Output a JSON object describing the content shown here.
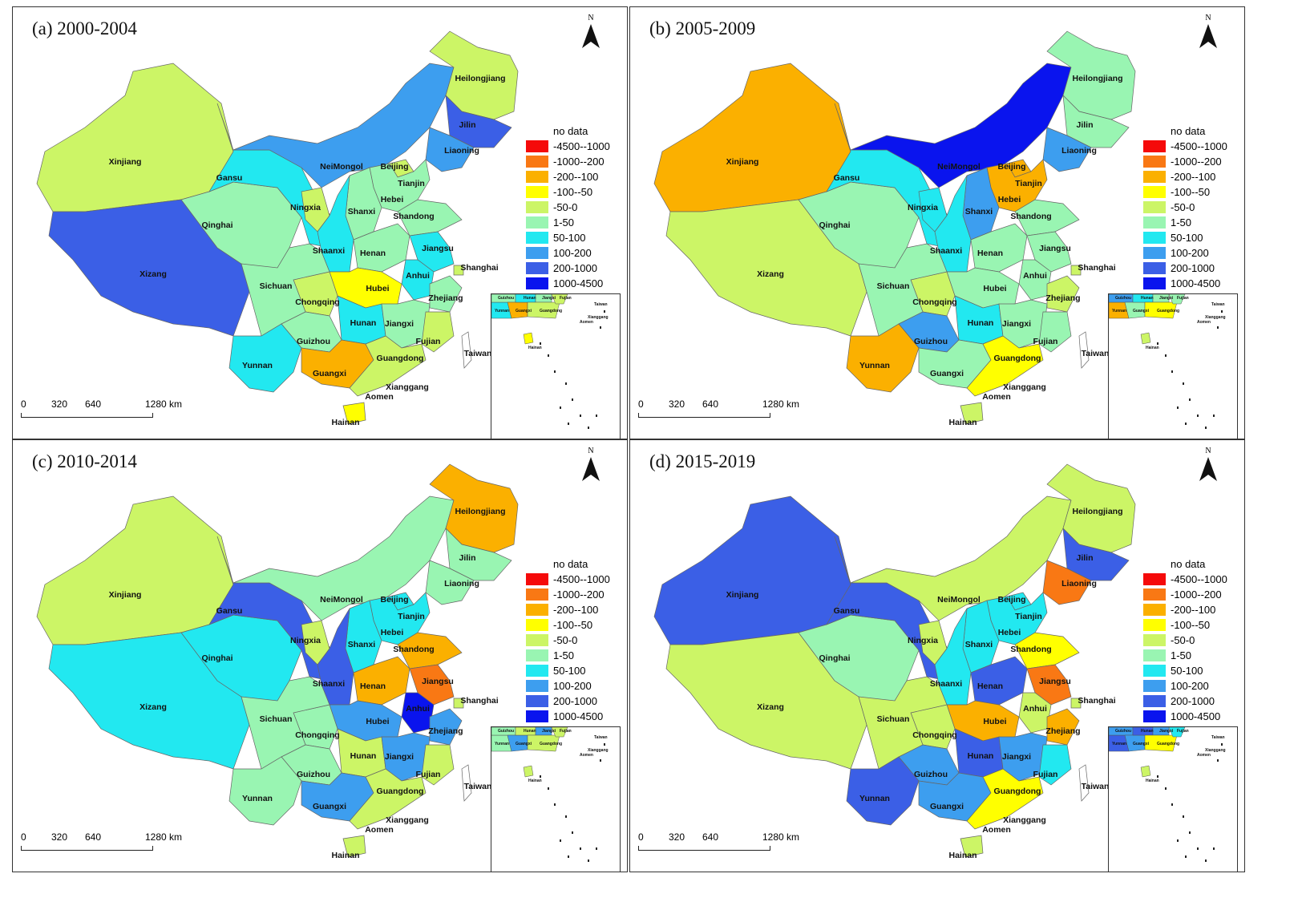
{
  "panels": [
    {
      "title": "(a) 2000-2004",
      "colors": {
        "Xinjiang": "#ccf566",
        "Xizang": "#3b5fe6",
        "Qinghai": "#99f5b2",
        "Gansu": "#22e8f0",
        "NeiMongol": "#3d9eef",
        "Heilongjiang": "#ccf566",
        "Jilin": "#3b5fe6",
        "Liaoning": "#3d9eef",
        "Beijing": "#ccf566",
        "Tianjin": "#ccf566",
        "Hebei": "#99f5b2",
        "Shanxi": "#99f5b2",
        "Shandong": "#99f5b2",
        "Ningxia": "#ccf566",
        "Shaanxi": "#22e8f0",
        "Henan": "#99f5b2",
        "Jiangsu": "#22e8f0",
        "Shanghai": "#ccf566",
        "Anhui": "#22e8f0",
        "Hubei": "#ffff00",
        "Chongqing": "#ccf566",
        "Sichuan": "#99f5b2",
        "Hunan": "#22e8f0",
        "Jiangxi": "#99f5b2",
        "Zhejiang": "#99f5b2",
        "Fujian": "#ccf566",
        "Guizhou": "#99f5b2",
        "Yunnan": "#22e8f0",
        "Guangxi": "#fbb000",
        "Guangdong": "#ccf566",
        "Hainan": "#ffff00",
        "Taiwan": "#ffffff"
      }
    },
    {
      "title": "(b) 2005-2009",
      "colors": {
        "Xinjiang": "#fbb000",
        "Xizang": "#ccf566",
        "Qinghai": "#99f5b2",
        "Gansu": "#22e8f0",
        "NeiMongol": "#0a14ee",
        "Heilongjiang": "#99f5b2",
        "Jilin": "#99f5b2",
        "Liaoning": "#3d9eef",
        "Beijing": "#fbb000",
        "Tianjin": "#ffff00",
        "Hebei": "#fbb000",
        "Shanxi": "#3d9eef",
        "Shandong": "#99f5b2",
        "Ningxia": "#22e8f0",
        "Shaanxi": "#22e8f0",
        "Henan": "#99f5b2",
        "Jiangsu": "#99f5b2",
        "Shanghai": "#ccf566",
        "Anhui": "#99f5b2",
        "Hubei": "#99f5b2",
        "Chongqing": "#ccf566",
        "Sichuan": "#99f5b2",
        "Hunan": "#22e8f0",
        "Jiangxi": "#99f5b2",
        "Zhejiang": "#ccf566",
        "Fujian": "#99f5b2",
        "Guizhou": "#3d9eef",
        "Yunnan": "#fbb000",
        "Guangxi": "#99f5b2",
        "Guangdong": "#ffff00",
        "Hainan": "#ccf566",
        "Taiwan": "#ffffff"
      }
    },
    {
      "title": "(c) 2010-2014",
      "colors": {
        "Xinjiang": "#ccf566",
        "Xizang": "#22e8f0",
        "Qinghai": "#22e8f0",
        "Gansu": "#3b5fe6",
        "NeiMongol": "#99f5b2",
        "Heilongjiang": "#fbb000",
        "Jilin": "#99f5b2",
        "Liaoning": "#99f5b2",
        "Beijing": "#22e8f0",
        "Tianjin": "#fbb000",
        "Hebei": "#22e8f0",
        "Shanxi": "#22e8f0",
        "Shandong": "#fbb000",
        "Ningxia": "#ccf566",
        "Shaanxi": "#3b5fe6",
        "Henan": "#fbb000",
        "Jiangsu": "#f97814",
        "Shanghai": "#ccf566",
        "Anhui": "#0a14ee",
        "Hubei": "#3d9eef",
        "Chongqing": "#99f5b2",
        "Sichuan": "#99f5b2",
        "Hunan": "#ccf566",
        "Jiangxi": "#3d9eef",
        "Zhejiang": "#3d9eef",
        "Fujian": "#ccf566",
        "Guizhou": "#99f5b2",
        "Yunnan": "#99f5b2",
        "Guangxi": "#3d9eef",
        "Guangdong": "#ccf566",
        "Hainan": "#ccf566",
        "Taiwan": "#ffffff"
      }
    },
    {
      "title": "(d) 2015-2019",
      "colors": {
        "Xinjiang": "#3b5fe6",
        "Xizang": "#ccf566",
        "Qinghai": "#99f5b2",
        "Gansu": "#3b5fe6",
        "NeiMongol": "#ccf566",
        "Heilongjiang": "#ccf566",
        "Jilin": "#3b5fe6",
        "Liaoning": "#f97814",
        "Beijing": "#22e8f0",
        "Tianjin": "#fbb000",
        "Hebei": "#22e8f0",
        "Shanxi": "#22e8f0",
        "Shandong": "#ffff00",
        "Ningxia": "#ccf566",
        "Shaanxi": "#22e8f0",
        "Henan": "#3b5fe6",
        "Jiangsu": "#f97814",
        "Shanghai": "#ccf566",
        "Anhui": "#ccf566",
        "Hubei": "#fbb000",
        "Chongqing": "#ccf566",
        "Sichuan": "#ccf566",
        "Hunan": "#3b5fe6",
        "Jiangxi": "#3d9eef",
        "Zhejiang": "#fbb000",
        "Fujian": "#22e8f0",
        "Guizhou": "#3d9eef",
        "Yunnan": "#3b5fe6",
        "Guangxi": "#3d9eef",
        "Guangdong": "#ffff00",
        "Hainan": "#ccf566",
        "Taiwan": "#ffffff"
      }
    }
  ],
  "north_label": "N",
  "legend": [
    {
      "label": "no data",
      "color": "#ffffff"
    },
    {
      "label": "-4500--1000",
      "color": "#f50a0a"
    },
    {
      "label": "-1000--200",
      "color": "#f97814"
    },
    {
      "label": "-200--100",
      "color": "#fbb000"
    },
    {
      "label": "-100--50",
      "color": "#ffff00"
    },
    {
      "label": "-50-0",
      "color": "#ccf566"
    },
    {
      "label": "1-50",
      "color": "#99f5b2"
    },
    {
      "label": "50-100",
      "color": "#22e8f0"
    },
    {
      "label": "100-200",
      "color": "#3d9eef"
    },
    {
      "label": "200-1000",
      "color": "#3b5fe6"
    },
    {
      "label": "1000-4500",
      "color": "#0a14ee"
    }
  ],
  "scale": {
    "ticks": [
      "0",
      "320",
      "640",
      "1280 km"
    ]
  },
  "province_names": [
    "Xinjiang",
    "Xizang",
    "Qinghai",
    "Gansu",
    "NeiMongol",
    "Heilongjiang",
    "Jilin",
    "Liaoning",
    "Beijing",
    "Tianjin",
    "Hebei",
    "Shanxi",
    "Shandong",
    "Ningxia",
    "Shaanxi",
    "Henan",
    "Jiangsu",
    "Shanghai",
    "Anhui",
    "Hubei",
    "Chongqing",
    "Sichuan",
    "Hunan",
    "Jiangxi",
    "Zhejiang",
    "Fujian",
    "Guizhou",
    "Yunnan",
    "Guangxi",
    "Guangdong",
    "Hainan",
    "Taiwan",
    "Xianggang",
    "Aomen"
  ],
  "inset_labels": [
    "Guizhou",
    "Hunan",
    "Jiangxi",
    "Fujian",
    "Yunnan",
    "Guangxi",
    "Guangdong",
    "Taiwan",
    "Xianggang",
    "Aomen",
    "Hainan"
  ]
}
